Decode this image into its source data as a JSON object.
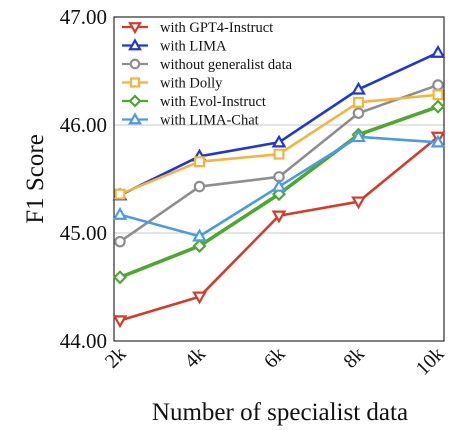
{
  "chart_data": {
    "type": "line",
    "title": "",
    "xlabel": "Number of specialist data",
    "ylabel": "F1 Score",
    "categories": [
      "2k",
      "4k",
      "6k",
      "8k",
      "10k"
    ],
    "ylim": [
      44.0,
      47.0
    ],
    "yticks": [
      "44.00",
      "45.00",
      "46.00",
      "47.00"
    ],
    "grid": "horizontal",
    "legend_position": "top-left",
    "series": [
      {
        "name": "with GPT4-Instruct",
        "color": "#d63b2a",
        "marker": "triangle-down",
        "values": [
          44.19,
          44.41,
          45.16,
          45.29,
          45.89
        ]
      },
      {
        "name": "with LIMA",
        "color": "#1f37d6",
        "marker": "triangle-up",
        "values": [
          45.35,
          45.71,
          45.84,
          46.33,
          46.67
        ]
      },
      {
        "name": "without generalist data",
        "color": "#8e8e8e",
        "marker": "circle",
        "values": [
          44.92,
          45.43,
          45.52,
          46.11,
          46.37
        ]
      },
      {
        "name": "with Dolly",
        "color": "#f3b53b",
        "marker": "square",
        "values": [
          45.36,
          45.66,
          45.73,
          46.21,
          46.28
        ]
      },
      {
        "name": "with Evol-Instruct",
        "color": "#4ea82f",
        "marker": "diamond",
        "values": [
          44.59,
          44.88,
          45.36,
          45.91,
          46.17
        ]
      },
      {
        "name": "with LIMA-Chat",
        "color": "#4a9be6",
        "marker": "triangle-up",
        "values": [
          45.17,
          44.97,
          45.43,
          45.89,
          45.84
        ]
      }
    ]
  }
}
